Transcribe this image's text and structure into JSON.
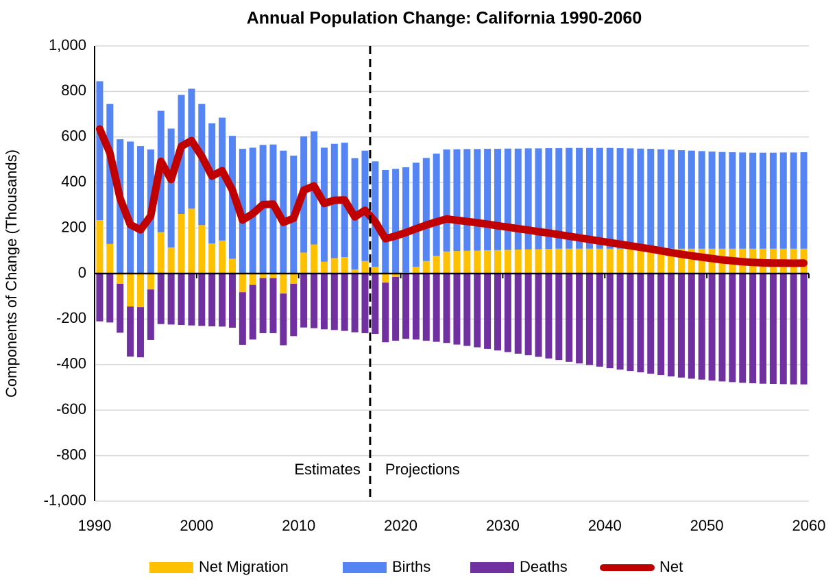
{
  "chart_data": {
    "type": "stacked_bar_line",
    "title": "Annual Population Change: California 1990-2060",
    "y_label": "Components of Change (Thousands)",
    "x": [
      1990,
      1991,
      1992,
      1993,
      1994,
      1995,
      1996,
      1997,
      1998,
      1999,
      2000,
      2001,
      2002,
      2003,
      2004,
      2005,
      2006,
      2007,
      2008,
      2009,
      2010,
      2011,
      2012,
      2013,
      2014,
      2015,
      2016,
      2017,
      2018,
      2019,
      2020,
      2021,
      2022,
      2023,
      2024,
      2025,
      2026,
      2027,
      2028,
      2029,
      2030,
      2031,
      2032,
      2033,
      2034,
      2035,
      2036,
      2037,
      2038,
      2039,
      2040,
      2041,
      2042,
      2043,
      2044,
      2045,
      2046,
      2047,
      2048,
      2049,
      2050,
      2051,
      2052,
      2053,
      2054,
      2055,
      2056,
      2057,
      2058,
      2059
    ],
    "series": [
      {
        "name": "Net Migration",
        "color": "#ffc000",
        "kind": "bar",
        "values": [
          235,
          130,
          -45,
          -145,
          -148,
          -70,
          182,
          115,
          262,
          285,
          213,
          132,
          145,
          65,
          -82,
          -50,
          -20,
          -20,
          -88,
          -45,
          92,
          128,
          52,
          68,
          72,
          18,
          55,
          30,
          -40,
          -15,
          5,
          30,
          55,
          78,
          97,
          99,
          100,
          101,
          102,
          103,
          104,
          105,
          106,
          107,
          108,
          109,
          109,
          109,
          109,
          109,
          109,
          109,
          109,
          109,
          109,
          109,
          109,
          109,
          109,
          109,
          109,
          109,
          109,
          109,
          109,
          109,
          109,
          109,
          109,
          109
        ]
      },
      {
        "name": "Births",
        "color": "#5585f2",
        "kind": "bar",
        "values": [
          610,
          615,
          590,
          580,
          560,
          545,
          533,
          522,
          523,
          527,
          532,
          528,
          540,
          540,
          548,
          553,
          565,
          567,
          540,
          518,
          511,
          497,
          501,
          502,
          503,
          489,
          485,
          463,
          455,
          460,
          462,
          457,
          453,
          449,
          448,
          447,
          447,
          446,
          446,
          445,
          445,
          444,
          444,
          443,
          443,
          442,
          443,
          443,
          443,
          443,
          443,
          442,
          441,
          440,
          439,
          437,
          435,
          433,
          431,
          429,
          427,
          425,
          424,
          423,
          422,
          422,
          422,
          423,
          423,
          424
        ]
      },
      {
        "name": "Deaths",
        "color": "#7030a0",
        "kind": "bar",
        "values": [
          -210,
          -215,
          -215,
          -220,
          -220,
          -222,
          -222,
          -224,
          -226,
          -228,
          -230,
          -232,
          -233,
          -238,
          -231,
          -240,
          -242,
          -242,
          -227,
          -230,
          -237,
          -240,
          -245,
          -248,
          -252,
          -258,
          -262,
          -265,
          -262,
          -280,
          -287,
          -290,
          -295,
          -300,
          -305,
          -312,
          -318,
          -324,
          -331,
          -338,
          -345,
          -352,
          -359,
          -366,
          -373,
          -380,
          -388,
          -395,
          -402,
          -409,
          -416,
          -422,
          -428,
          -434,
          -440,
          -446,
          -452,
          -457,
          -462,
          -466,
          -470,
          -474,
          -477,
          -480,
          -482,
          -484,
          -485,
          -486,
          -487,
          -487
        ]
      },
      {
        "name": "Net",
        "color": "#c00000",
        "kind": "line",
        "values": [
          635,
          530,
          330,
          215,
          192,
          253,
          493,
          413,
          559,
          584,
          515,
          428,
          452,
          367,
          235,
          263,
          303,
          305,
          225,
          243,
          366,
          385,
          308,
          322,
          323,
          249,
          278,
          228,
          153,
          165,
          180,
          197,
          213,
          227,
          240,
          234,
          229,
          223,
          217,
          210,
          204,
          197,
          191,
          184,
          178,
          171,
          164,
          157,
          150,
          143,
          136,
          129,
          122,
          115,
          108,
          100,
          92,
          85,
          78,
          72,
          66,
          60,
          56,
          52,
          49,
          47,
          46,
          46,
          45,
          46
        ]
      }
    ],
    "xlim": [
      1990,
      2060
    ],
    "xticks": [
      1990,
      2000,
      2010,
      2020,
      2030,
      2040,
      2050,
      2060
    ],
    "ylim": [
      -1000,
      1000
    ],
    "yticks": [
      {
        "value": -1000,
        "label": "-1,000"
      },
      -800,
      -600,
      -400,
      -200,
      0,
      200,
      400,
      600,
      800,
      {
        "value": 1000,
        "label": "1,000"
      }
    ],
    "grid": true,
    "divider": 2017,
    "annotations": [
      "Estimates",
      "Projections"
    ],
    "legend": "bottom"
  }
}
